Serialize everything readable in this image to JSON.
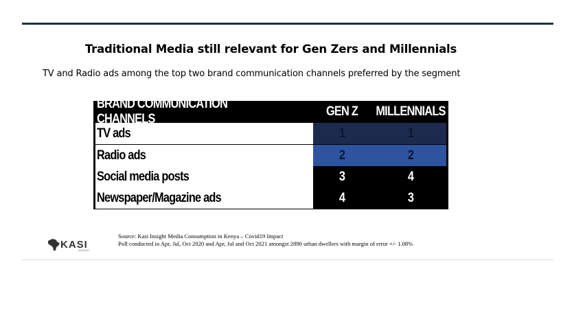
{
  "slide": {
    "title": "Traditional Media still relevant for Gen Zers and Millennials",
    "subtitle": "TV and Radio ads among the top two brand communication channels preferred by the segment"
  },
  "table": {
    "headers": [
      "BRAND COMMUNICATION CHANNELS",
      "GEN Z",
      "MILLENNIALS"
    ],
    "rows": [
      {
        "channel": "TV ads",
        "gen_z": "1",
        "millennials": "1"
      },
      {
        "channel": "Radio ads",
        "gen_z": "2",
        "millennials": "2"
      },
      {
        "channel": "Social media posts",
        "gen_z": "3",
        "millennials": "4"
      },
      {
        "channel": "Newspaper/Magazine ads",
        "gen_z": "4",
        "millennials": "3"
      }
    ],
    "colors": {
      "rank1": "#1c2b4d",
      "rank2": "#2e54a0",
      "other": "#000000"
    }
  },
  "footer": {
    "source_line1": "Source: Kasi Insight  Media Consumption in Kenya – Covid19 Impact",
    "source_line2": "Poll conducted in Apr, Jul, Oct 2020 and Apr, Jul and Oct 2021 amongst 2890 urban dwellers with margin of error +/- 1.08%",
    "logo_text": "KASI",
    "logo_subtext": "INSIGHT"
  }
}
